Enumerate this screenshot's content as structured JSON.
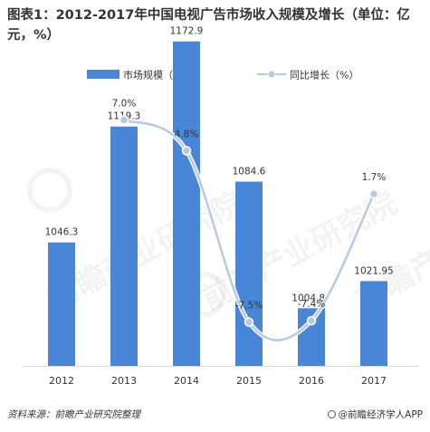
{
  "header": {
    "title": "图表1：2012-2017年中国电视广告市场收入规模及增长（单位：亿元，%）"
  },
  "footer": {
    "source": "资料来源：前瞻产业研究院整理",
    "brand": "@前瞻经济学人APP"
  },
  "watermark": {
    "text": "前瞻产业研究院"
  },
  "colors": {
    "bar": "#4a86d8",
    "line": "#b8c9e4",
    "marker_fill": "#b8c9e4",
    "marker_stroke": "#ffffff"
  },
  "chart_data": {
    "type": "bar",
    "categories": [
      "2012",
      "2013",
      "2014",
      "2015",
      "2016",
      "2017"
    ],
    "series": [
      {
        "name": "市场规模（亿元）",
        "type": "bar",
        "values": [
          1046.3,
          1119.3,
          1172.9,
          1084.6,
          1004.87,
          1021.95
        ],
        "labels": [
          "1046.3",
          "1119.3",
          "1172.9",
          "1084.6",
          "1004.87",
          "1021.95"
        ]
      },
      {
        "name": "同比增长（%）",
        "type": "line",
        "smooth": true,
        "x": [
          "2013",
          "2014",
          "2015",
          "2016",
          "2017"
        ],
        "values": [
          7.0,
          4.8,
          -7.5,
          -7.4,
          1.7
        ],
        "labels": [
          "7.0%",
          "4.8%",
          "-7.5%",
          "-7.4%",
          "1.7%"
        ]
      }
    ],
    "legend_position": "top",
    "grid": false
  }
}
